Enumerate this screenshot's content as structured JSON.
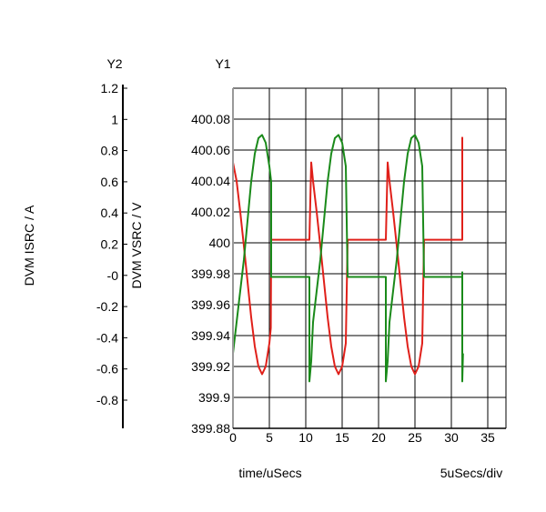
{
  "chart_data": {
    "type": "line",
    "y1_title": "Y1",
    "y2_title": "Y2",
    "y1_label": "DVM VSRC / V",
    "y2_label": "DVM ISRC / A",
    "xlabel": "time/uSecs",
    "div_label": "5uSecs/div",
    "x_ticks": [
      "0",
      "5",
      "10",
      "15",
      "20",
      "25",
      "30",
      "35"
    ],
    "y1_ticks": [
      "399.88",
      "399.9",
      "399.92",
      "399.94",
      "399.96",
      "399.98",
      "400",
      "400.02",
      "400.04",
      "400.06",
      "400.08"
    ],
    "y2_ticks": [
      "-0.8",
      "-0.6",
      "-0.4",
      "-0.2",
      "-0",
      "0.2",
      "0.4",
      "0.6",
      "0.8",
      "1",
      "1.2"
    ],
    "xlim": [
      0,
      35
    ],
    "y1lim": [
      399.88,
      400.1
    ],
    "y2lim": [
      -0.8,
      1.2
    ],
    "grid": true,
    "series": [
      {
        "axis": "y1",
        "color": "#e0201a",
        "x": [
          0,
          0.5,
          1,
          1.5,
          2,
          2.5,
          3,
          3.5,
          4,
          4.5,
          5,
          5.2,
          5.25,
          10.5,
          10.75,
          11,
          11.5,
          12,
          12.5,
          13,
          13.5,
          14,
          14.5,
          15,
          15.5,
          15.75,
          21.0,
          21.25,
          21.5,
          22,
          22.5,
          23,
          23.5,
          24,
          24.5,
          25,
          25.5,
          26,
          26.25,
          31.5,
          31.5,
          31.5,
          31.6
        ],
        "y": [
          400.052,
          400.04,
          400.02,
          399.998,
          399.975,
          399.952,
          399.933,
          399.92,
          399.915,
          399.92,
          399.935,
          399.945,
          400.002,
          400.002,
          400.052,
          400.04,
          400.02,
          399.998,
          399.975,
          399.952,
          399.933,
          399.92,
          399.915,
          399.92,
          399.935,
          400.002,
          400.002,
          400.052,
          400.04,
          400.02,
          399.998,
          399.975,
          399.952,
          399.933,
          399.92,
          399.915,
          399.92,
          399.935,
          400.002,
          400.002,
          400.068,
          400.052,
          400.052
        ]
      },
      {
        "axis": "y2",
        "color": "#1a8a1a",
        "x": [
          0,
          0.5,
          1,
          1.5,
          2,
          2.5,
          3,
          3.5,
          4,
          4.5,
          5,
          5.25,
          5.25,
          10.5,
          10.5,
          10.75,
          11,
          11.5,
          12,
          12.5,
          13,
          13.5,
          14,
          14.5,
          15,
          15.5,
          15.75,
          21.0,
          21.0,
          21.25,
          21.5,
          22,
          22.5,
          23,
          23.5,
          24,
          24.5,
          25,
          25.5,
          26,
          26.25,
          31.5,
          31.5,
          31.5,
          31.6
        ],
        "y": [
          -0.5,
          -0.3,
          -0.1,
          0.1,
          0.35,
          0.6,
          0.78,
          0.88,
          0.9,
          0.85,
          0.7,
          0.6,
          -0.01,
          -0.01,
          -0.68,
          -0.55,
          -0.3,
          -0.1,
          0.1,
          0.35,
          0.6,
          0.78,
          0.88,
          0.9,
          0.85,
          0.7,
          -0.01,
          -0.01,
          -0.68,
          -0.55,
          -0.3,
          -0.1,
          0.1,
          0.35,
          0.6,
          0.78,
          0.88,
          0.9,
          0.85,
          0.7,
          -0.01,
          -0.01,
          0.02,
          -0.68,
          -0.5
        ]
      }
    ]
  }
}
